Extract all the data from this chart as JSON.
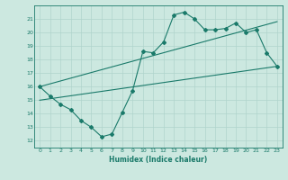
{
  "xlabel": "Humidex (Indice chaleur)",
  "ylabel": "",
  "bg_color": "#cce8e0",
  "line_color": "#1a7a6a",
  "grid_color": "#b0d4cc",
  "xlim": [
    -0.5,
    23.5
  ],
  "ylim": [
    11.5,
    22.0
  ],
  "yticks": [
    12,
    13,
    14,
    15,
    16,
    17,
    18,
    19,
    20,
    21
  ],
  "xticks": [
    0,
    1,
    2,
    3,
    4,
    5,
    6,
    7,
    8,
    9,
    10,
    11,
    12,
    13,
    14,
    15,
    16,
    17,
    18,
    19,
    20,
    21,
    22,
    23
  ],
  "series1_x": [
    0,
    1,
    2,
    3,
    4,
    5,
    6,
    7,
    8,
    9,
    10,
    11,
    12,
    13,
    14,
    15,
    16,
    17,
    18,
    19,
    20,
    21,
    22,
    23
  ],
  "series1_y": [
    16.0,
    15.3,
    14.7,
    14.3,
    13.5,
    13.0,
    12.3,
    12.5,
    14.1,
    15.7,
    18.6,
    18.5,
    19.3,
    21.3,
    21.5,
    21.0,
    20.2,
    20.2,
    20.3,
    20.7,
    20.0,
    20.2,
    18.5,
    17.5
  ],
  "series2_x": [
    0,
    23
  ],
  "series2_y": [
    15.0,
    17.5
  ],
  "series3_x": [
    0,
    23
  ],
  "series3_y": [
    16.0,
    20.8
  ]
}
